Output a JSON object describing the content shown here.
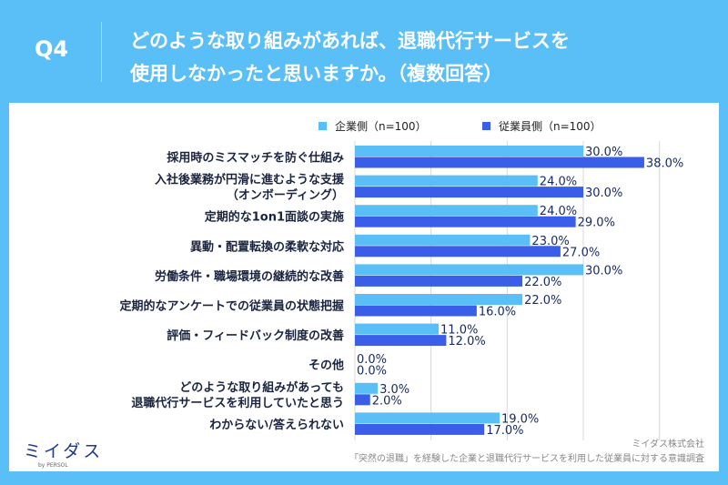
{
  "header": {
    "q": "Q4",
    "title_lines": [
      "どのような取り組みがあれば、退職代行サービスを",
      "使用しなかったと思いますか。（複数回答）"
    ]
  },
  "chart_data": {
    "type": "bar",
    "orientation": "horizontal",
    "categories": [
      [
        "採用時のミスマッチを防ぐ仕組み"
      ],
      [
        "入社後業務が円滑に進むような支援",
        "（オンボーディング）"
      ],
      [
        "定期的な1on1面談の実施"
      ],
      [
        "異動・配置転換の柔軟な対応"
      ],
      [
        "労働条件・職場環境の継続的な改善"
      ],
      [
        "定期的なアンケートでの従業員の状態把握"
      ],
      [
        "評価・フィードバック制度の改善"
      ],
      [
        "その他"
      ],
      [
        "どのような取り組みがあっても",
        "退職代行サービスを利用していたと思う"
      ],
      [
        "わからない/答えられない"
      ]
    ],
    "series": [
      {
        "name": "企業側（n=100）",
        "color": "#5bbff7",
        "values": [
          30,
          24,
          24,
          23,
          30,
          22,
          11,
          0,
          3,
          19
        ]
      },
      {
        "name": "従業員側（n=100）",
        "color": "#3a5ee8",
        "values": [
          38,
          30,
          29,
          27,
          22,
          16,
          12,
          0,
          2,
          17
        ]
      }
    ],
    "value_format": "%",
    "xlim": [
      0,
      40
    ],
    "grid": true,
    "legend": "top-right"
  },
  "footer": {
    "logo": "ミイダス by PERSOL",
    "company": "ミイダス株式会社",
    "source": "「突然の退職」を経験した企業と退職代行サービスを利用した従業員に対する意識調査"
  }
}
